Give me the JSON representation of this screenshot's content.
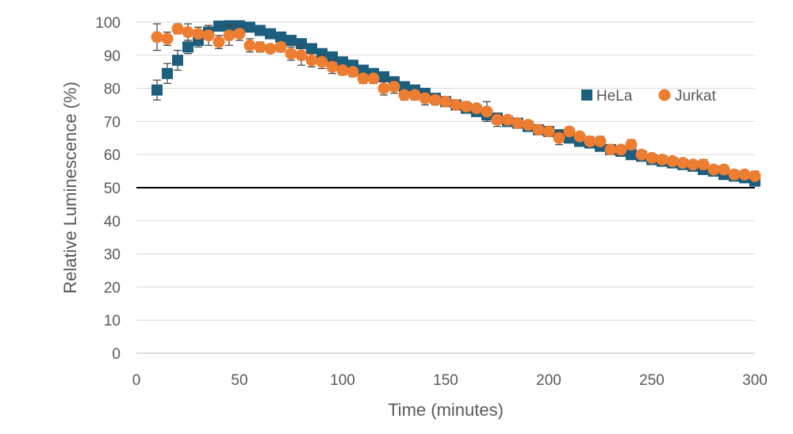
{
  "chart_data": {
    "type": "scatter",
    "xlabel": "Time (minutes)",
    "ylabel": "Relative Luminescence (%)",
    "xlim": [
      0,
      300
    ],
    "ylim": [
      0,
      100
    ],
    "x_ticks": [
      0,
      50,
      100,
      150,
      200,
      250,
      300
    ],
    "y_ticks": [
      0,
      10,
      20,
      30,
      40,
      50,
      60,
      70,
      80,
      90,
      100
    ],
    "grid": "horizontal",
    "legend_position": "right",
    "reference_line": {
      "y": 50,
      "color": "#000000"
    },
    "x": [
      10,
      15,
      20,
      25,
      30,
      35,
      40,
      45,
      50,
      55,
      60,
      65,
      70,
      75,
      80,
      85,
      90,
      95,
      100,
      105,
      110,
      115,
      120,
      125,
      130,
      135,
      140,
      145,
      150,
      155,
      160,
      165,
      170,
      175,
      180,
      185,
      190,
      195,
      200,
      205,
      210,
      215,
      220,
      225,
      230,
      235,
      240,
      245,
      250,
      255,
      260,
      265,
      270,
      275,
      280,
      285,
      290,
      295,
      300
    ],
    "series": [
      {
        "name": "HeLa",
        "color": "#1b5e7e",
        "marker": "square",
        "values": [
          79.5,
          84.5,
          88.5,
          92.5,
          94.5,
          97,
          98.8,
          98.9,
          98.9,
          98.5,
          97.5,
          96.5,
          95.5,
          94.5,
          93.5,
          92,
          90.5,
          89.5,
          88,
          87,
          85.5,
          84.5,
          83.5,
          82,
          80.5,
          79.5,
          78.5,
          77,
          76,
          75,
          74,
          73,
          72,
          71,
          70,
          69.5,
          68.5,
          67.5,
          67,
          66,
          65,
          64,
          63.5,
          62.5,
          61.5,
          61,
          60,
          59.5,
          58.5,
          58,
          57.5,
          57,
          56.5,
          55.5,
          55,
          54,
          53.5,
          53,
          52
        ],
        "error": [
          3,
          3,
          3,
          2,
          2,
          2,
          1,
          1,
          1,
          1,
          1,
          1,
          1,
          1,
          1,
          1,
          1,
          1,
          1,
          1,
          1,
          1,
          1,
          1,
          1,
          1,
          1,
          1,
          1,
          1,
          1,
          1,
          1,
          1,
          1,
          1,
          1,
          1,
          1,
          1,
          1,
          1,
          1,
          1,
          1,
          1,
          1,
          1,
          1,
          1,
          1,
          1,
          1,
          1,
          1,
          1,
          1,
          1,
          1
        ]
      },
      {
        "name": "Jurkat",
        "color": "#ed7d31",
        "marker": "circle",
        "values": [
          95.5,
          95,
          98,
          97,
          96.5,
          96,
          94,
          96,
          96.5,
          93,
          92.5,
          92,
          92.5,
          90.5,
          90,
          88.5,
          88,
          86.5,
          85.5,
          85,
          83,
          83,
          80,
          80.5,
          78,
          78,
          77,
          76.5,
          76,
          75,
          74.5,
          74,
          73,
          70.5,
          70.5,
          69.5,
          69,
          67.5,
          67,
          65,
          67,
          65.5,
          64,
          64,
          61.5,
          61.5,
          63,
          60,
          59,
          58.5,
          58,
          57.5,
          57,
          57,
          55.5,
          55.5,
          54,
          54,
          53.5
        ],
        "error": [
          4,
          2,
          1.5,
          2.5,
          2,
          3,
          2,
          3,
          2,
          2,
          1.5,
          1,
          1.5,
          2,
          3,
          2,
          2,
          2,
          1.5,
          1.5,
          1.5,
          1.5,
          2,
          2,
          1.5,
          1.5,
          2,
          1.5,
          1,
          1.5,
          1.5,
          1,
          3,
          2,
          1,
          1,
          1,
          1,
          1.5,
          2,
          1,
          1,
          1.5,
          1.5,
          1,
          1,
          1.5,
          1,
          1,
          1,
          1,
          1,
          1,
          1.5,
          1,
          1,
          1,
          1,
          1.5
        ]
      }
    ]
  }
}
